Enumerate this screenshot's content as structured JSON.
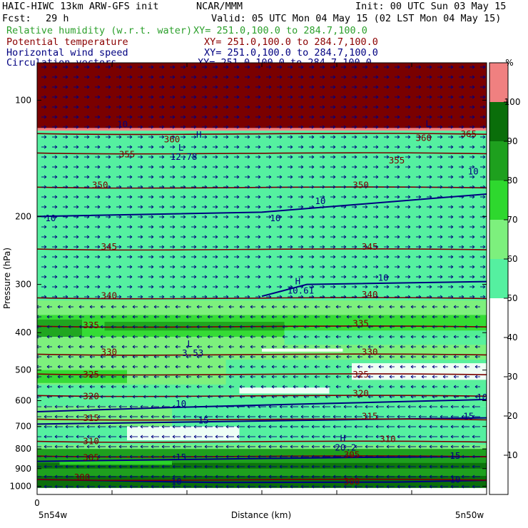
{
  "header": {
    "model": "HAIC-HIWC 13km ARW-GFS init",
    "org": "NCAR/MMM",
    "init": "Init: 00 UTC Sun 03 May 15",
    "fcst_label": "Fcst:",
    "fcst_value": "29 h",
    "valid": "Valid: 05 UTC Mon 04 May 15 (02 LST Mon 04 May 15)",
    "fields": [
      {
        "name": "Relative humidity (w.r.t. water)",
        "xy": "XY= 251.0,100.0 to 284.7,100.0",
        "color": "#2ca02c"
      },
      {
        "name": "Potential temperature",
        "xy": "XY= 251.0,100.0 to 284.7,100.0",
        "color": "#8b0000"
      },
      {
        "name": "Horizontal wind speed",
        "xy": "XY= 251.0,100.0 to 284.7,100.0",
        "color": "#000080"
      },
      {
        "name": "Circulation vectors",
        "xy": "XY= 251.0,100.0 to 284.7,100.0",
        "color": "#000080"
      }
    ]
  },
  "axes": {
    "ylabel": "Pressure (hPa)",
    "xlabel": "Distance (km)",
    "y_ticks": [
      "100",
      "200",
      "300",
      "400",
      "500",
      "600",
      "700",
      "800",
      "900",
      "1000"
    ],
    "x_origin": "0",
    "x_left": "5n54w",
    "x_right": "5n50w"
  },
  "colorbar": {
    "unit": "%",
    "ticks": [
      "10",
      "20",
      "30",
      "40",
      "50",
      "60",
      "70",
      "80",
      "90",
      "100"
    ],
    "colors": [
      "#ffffff",
      "#ffffff",
      "#ffffff",
      "#ffffff",
      "#ffffff",
      "#55f0a0",
      "#7df07d",
      "#2ed82e",
      "#1ea01e",
      "#0a6e0a",
      "#f08080"
    ]
  },
  "chart_data": {
    "type": "heatmap",
    "title": "HAIC-HIWC 13km ARW-GFS init",
    "xlabel": "Distance (km)",
    "ylabel": "Pressure (hPa)",
    "y_log": true,
    "ylim": [
      1050,
      80
    ],
    "theta_contours": [
      {
        "value": 300,
        "p": 960
      },
      {
        "value": 305,
        "p": 835
      },
      {
        "value": 310,
        "p": 765
      },
      {
        "value": 315,
        "p": 670
      },
      {
        "value": 320,
        "p": 582
      },
      {
        "value": 325,
        "p": 512
      },
      {
        "value": 330,
        "p": 455
      },
      {
        "value": 335,
        "p": 385
      },
      {
        "value": 340,
        "p": 325
      },
      {
        "value": 345,
        "p": 243
      },
      {
        "value": 350,
        "p": 168
      },
      {
        "value": 355,
        "p": 137
      },
      {
        "value": 360,
        "p": 122
      },
      {
        "value": 365,
        "p": 112
      },
      {
        "value": 370,
        "p": 104
      }
    ],
    "theta_labels": [
      {
        "value": "300",
        "x": 0.1,
        "p": 960
      },
      {
        "value": "300",
        "x": 0.7,
        "p": 985
      },
      {
        "value": "305",
        "x": 0.12,
        "p": 855
      },
      {
        "value": "305",
        "x": 0.7,
        "p": 840
      },
      {
        "value": "310",
        "x": 0.12,
        "p": 775
      },
      {
        "value": "310",
        "x": 0.78,
        "p": 765
      },
      {
        "value": "315",
        "x": 0.12,
        "p": 675
      },
      {
        "value": "315",
        "x": 0.74,
        "p": 668
      },
      {
        "value": "320",
        "x": 0.12,
        "p": 592
      },
      {
        "value": "320",
        "x": 0.72,
        "p": 582
      },
      {
        "value": "325",
        "x": 0.12,
        "p": 520
      },
      {
        "value": "325",
        "x": 0.72,
        "p": 520
      },
      {
        "value": "330",
        "x": 0.16,
        "p": 455
      },
      {
        "value": "330",
        "x": 0.74,
        "p": 455
      },
      {
        "value": "335",
        "x": 0.12,
        "p": 388
      },
      {
        "value": "335",
        "x": 0.72,
        "p": 384
      },
      {
        "value": "340",
        "x": 0.16,
        "p": 325
      },
      {
        "value": "340",
        "x": 0.74,
        "p": 323
      },
      {
        "value": "345",
        "x": 0.16,
        "p": 243
      },
      {
        "value": "345",
        "x": 0.74,
        "p": 243
      },
      {
        "value": "350",
        "x": 0.14,
        "p": 168
      },
      {
        "value": "350",
        "x": 0.72,
        "p": 168
      },
      {
        "value": "355",
        "x": 0.2,
        "p": 140
      },
      {
        "value": "355",
        "x": 0.8,
        "p": 145
      },
      {
        "value": "360",
        "x": 0.3,
        "p": 128
      },
      {
        "value": "360",
        "x": 0.86,
        "p": 127
      },
      {
        "value": "365",
        "x": 0.96,
        "p": 124
      },
      {
        "value": "370",
        "x": 0.13,
        "p": 106
      },
      {
        "value": "16",
        "x": 0.93,
        "p": 112
      }
    ],
    "wind_contours": [
      {
        "value": 10,
        "points": [
          [
            0.0,
            641
          ],
          [
            0.3,
            625
          ],
          [
            0.6,
            612
          ],
          [
            1.0,
            596
          ]
        ]
      },
      {
        "value": 15,
        "points": [
          [
            0.0,
            690
          ],
          [
            0.4,
            680
          ],
          [
            0.7,
            672
          ],
          [
            1.0,
            665
          ]
        ]
      },
      {
        "value": 15,
        "points": [
          [
            0.0,
            862
          ],
          [
            0.4,
            850
          ],
          [
            0.7,
            842
          ],
          [
            1.0,
            838
          ]
        ]
      },
      {
        "value": 10,
        "points": [
          [
            0.0,
            960
          ],
          [
            0.4,
            978
          ],
          [
            0.8,
            975
          ],
          [
            1.0,
            965
          ]
        ]
      },
      {
        "value": 10,
        "points": [
          [
            0.0,
            200
          ],
          [
            0.5,
            195
          ],
          [
            1.0,
            175
          ]
        ]
      },
      {
        "value": 10,
        "points": [
          [
            0.5,
            322
          ],
          [
            0.6,
            300
          ],
          [
            1.0,
            295
          ]
        ]
      }
    ],
    "wind_labels": [
      {
        "value": "10",
        "x": 0.32,
        "p": 620
      },
      {
        "value": "10",
        "x": 0.99,
        "p": 596
      },
      {
        "value": "15",
        "x": 0.37,
        "p": 685
      },
      {
        "value": "15",
        "x": 0.96,
        "p": 667
      },
      {
        "value": "15",
        "x": 0.32,
        "p": 852
      },
      {
        "value": "15",
        "x": 0.93,
        "p": 845
      },
      {
        "value": "10",
        "x": 0.31,
        "p": 985
      },
      {
        "value": "10",
        "x": 0.93,
        "p": 975
      },
      {
        "value": "10",
        "x": 0.03,
        "p": 205
      },
      {
        "value": "10",
        "x": 0.53,
        "p": 205
      },
      {
        "value": "10",
        "x": 0.63,
        "p": 185
      },
      {
        "value": "10",
        "x": 0.77,
        "p": 292
      },
      {
        "value": "10",
        "x": 0.19,
        "p": 117
      },
      {
        "value": "10",
        "x": 0.97,
        "p": 155
      }
    ],
    "extrema": [
      {
        "label": "L",
        "value": "3.53",
        "x": 0.34,
        "p": 435
      },
      {
        "label": "H",
        "value": "10.61",
        "x": 0.58,
        "p": 300
      },
      {
        "label": "H",
        "value": "20.2",
        "x": 0.68,
        "p": 765
      },
      {
        "label": "L",
        "value": "12.78",
        "x": 0.32,
        "p": 135
      },
      {
        "label": "H",
        "value": "",
        "x": 0.36,
        "p": 125
      },
      {
        "label": "L",
        "value": "",
        "x": 0.87,
        "p": 117
      }
    ],
    "rh_zones": [
      {
        "level": 100,
        "p_top": 80,
        "p_bot": 120
      },
      {
        "level": 50,
        "p_top": 120,
        "p_bot": 330
      },
      {
        "level": 60,
        "p_top": 330,
        "p_bot": 620
      },
      {
        "level": 50,
        "p_top": 620,
        "p_bot": 800
      },
      {
        "level": 80,
        "p_top": 800,
        "p_bot": 940
      },
      {
        "level": 90,
        "p_top": 940,
        "p_bot": 1010
      }
    ]
  }
}
